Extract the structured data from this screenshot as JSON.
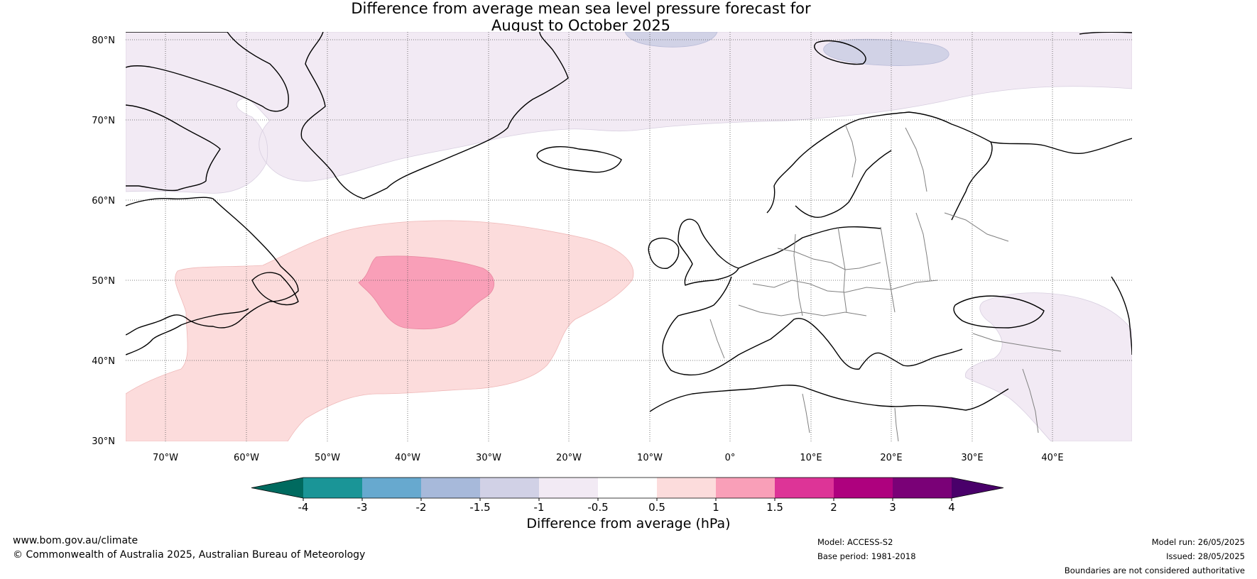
{
  "title": {
    "line1": "Difference from average mean sea level pressure forecast for",
    "line2": "August to October 2025"
  },
  "map": {
    "latitudes": [
      "80°N",
      "70°N",
      "60°N",
      "50°N",
      "40°N",
      "30°N"
    ],
    "longitudes": [
      "70°W",
      "60°W",
      "50°W",
      "40°W",
      "30°W",
      "20°W",
      "10°W",
      "0°",
      "10°E",
      "20°E",
      "30°E",
      "40°E"
    ],
    "anomaly_regions": [
      {
        "label": "0.5 to 1",
        "color": "#fcdcdc"
      },
      {
        "label": "1 to 1.5",
        "color": "#f99fb8"
      },
      {
        "label": "-1 to -0.5",
        "color": "#f2eaf4"
      },
      {
        "label": "-1.5 to -1",
        "color": "#d1d2e6"
      }
    ]
  },
  "colorbar": {
    "ticks": [
      "-4",
      "-3",
      "-2",
      "-1.5",
      "-1",
      "-0.5",
      "0.5",
      "1",
      "1.5",
      "2",
      "3",
      "4"
    ],
    "colors": [
      "#006a5f",
      "#1a9597",
      "#67a9cf",
      "#a7b9da",
      "#d1d1e6",
      "#f2eaf4",
      "#ffffff",
      "#fcdcdc",
      "#f99fb8",
      "#dd3497",
      "#ae017e",
      "#7a0177",
      "#49006a"
    ],
    "label": "Difference from average (hPa)"
  },
  "footer": {
    "website": "www.bom.gov.au/climate",
    "copyright": "© Commonwealth of Australia 2025, Australian Bureau of Meteorology",
    "model": "Model: ACCESS-S2",
    "base_period": "Base period: 1981-2018",
    "model_run": "Model run: 26/05/2025",
    "issued": "Issued: 28/05/2025",
    "disclaimer": "Boundaries are not considered authoritative"
  }
}
